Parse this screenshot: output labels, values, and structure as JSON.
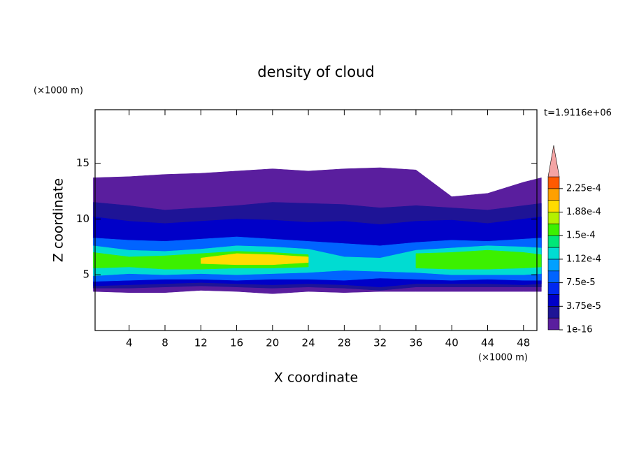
{
  "chart_data": {
    "type": "contour",
    "title": "density of cloud",
    "xlabel": "X coordinate",
    "ylabel": "Z coordinate",
    "xunit": "(×1000 m)",
    "yunit": "(×1000 m)",
    "annotation": "t=1.9116e+06",
    "xlim": [
      0.2,
      49.5
    ],
    "xticks": [
      4,
      8,
      12,
      16,
      20,
      24,
      28,
      32,
      36,
      40,
      44,
      48
    ],
    "ylim": [
      0,
      19.8
    ],
    "yticks": [
      5,
      10,
      15
    ],
    "colorbar": {
      "clim": [
        1e-16,
        0.00024375
      ],
      "bounds": [
        1e-16,
        1.875e-05,
        3.75e-05,
        5.625e-05,
        7.5e-05,
        9.375e-05,
        0.0001125,
        0.00013125,
        0.00015,
        0.00016875,
        0.0001875,
        0.00020625,
        0.000225
      ],
      "colors": [
        "#5a1e9e",
        "#1e1496",
        "#0000c8",
        "#0028f0",
        "#0064ff",
        "#00a0ff",
        "#00dcd2",
        "#00e678",
        "#3cf000",
        "#b4f000",
        "#ffdc00",
        "#ffa000",
        "#ff5a00"
      ],
      "extend_color": "#f4a4a4",
      "ticks": [
        {
          "value": 1e-16,
          "label": "1e-16"
        },
        {
          "value": 3.75e-05,
          "label": "3.75e-5"
        },
        {
          "value": 7.5e-05,
          "label": "7.5e-5"
        },
        {
          "value": 0.0001125,
          "label": "1.12e-4"
        },
        {
          "value": 0.00015,
          "label": "1.5e-4"
        },
        {
          "value": 0.0001875,
          "label": "1.88e-4"
        },
        {
          "value": 0.000225,
          "label": "2.25e-4"
        }
      ]
    },
    "x": [
      0,
      4,
      8,
      12,
      16,
      20,
      24,
      28,
      32,
      36,
      40,
      44,
      48,
      50
    ],
    "contours": [
      {
        "level": 1e-16,
        "top": [
          13.7,
          13.8,
          14.0,
          14.1,
          14.3,
          14.5,
          14.3,
          14.5,
          14.6,
          14.4,
          12.0,
          12.3,
          13.3,
          13.7
        ],
        "bottom": [
          3.5,
          3.4,
          3.4,
          3.6,
          3.5,
          3.3,
          3.5,
          3.4,
          3.5,
          3.5,
          3.5,
          3.5,
          3.5,
          3.5
        ]
      },
      {
        "level": 1.875e-05,
        "top": [
          11.5,
          11.2,
          10.8,
          11.0,
          11.2,
          11.5,
          11.4,
          11.3,
          11.0,
          11.2,
          11.0,
          10.8,
          11.2,
          11.4
        ],
        "bottom": [
          3.8,
          3.8,
          3.9,
          4.0,
          3.9,
          3.8,
          3.9,
          3.8,
          3.6,
          3.9,
          3.9,
          3.9,
          3.9,
          3.9
        ]
      },
      {
        "level": 3.75e-05,
        "top": [
          10.2,
          9.8,
          9.6,
          9.8,
          10.0,
          9.9,
          9.7,
          9.8,
          9.5,
          9.8,
          9.9,
          9.6,
          10.0,
          10.2
        ],
        "bottom": [
          4.0,
          4.1,
          4.2,
          4.3,
          4.2,
          4.1,
          4.2,
          4.1,
          3.9,
          4.2,
          4.2,
          4.2,
          4.1,
          4.2
        ]
      },
      {
        "level": 7.5e-05,
        "top": [
          8.3,
          8.1,
          8.0,
          8.2,
          8.4,
          8.2,
          8.0,
          7.8,
          7.6,
          7.9,
          8.1,
          8.0,
          8.2,
          8.3
        ],
        "bottom": [
          4.4,
          4.5,
          4.6,
          4.6,
          4.5,
          4.6,
          4.6,
          4.5,
          4.7,
          4.6,
          4.5,
          4.6,
          4.5,
          4.5
        ]
      },
      {
        "level": 0.0001125,
        "top": [
          7.6,
          7.2,
          7.1,
          7.3,
          7.6,
          7.5,
          7.3,
          6.6,
          6.5,
          7.2,
          7.4,
          7.6,
          7.5,
          7.4
        ],
        "bottom": [
          4.9,
          5.1,
          5.0,
          5.1,
          5.0,
          5.1,
          5.2,
          5.4,
          5.3,
          5.2,
          5.0,
          5.0,
          5.0,
          5.1
        ]
      },
      {
        "level": 0.00015,
        "top": [
          7.0,
          6.6,
          6.7,
          6.9,
          7.1,
          7.0,
          6.8,
          null,
          null,
          6.9,
          7.0,
          7.2,
          7.0,
          6.8
        ],
        "bottom": [
          5.6,
          5.7,
          5.5,
          5.5,
          5.6,
          5.6,
          5.7,
          null,
          null,
          5.6,
          5.5,
          5.5,
          5.6,
          5.7
        ]
      },
      {
        "level": 0.0001875,
        "top": [
          null,
          null,
          null,
          6.5,
          6.9,
          6.8,
          6.6,
          null,
          null,
          null,
          null,
          null,
          null,
          null
        ],
        "bottom": [
          null,
          null,
          null,
          6.0,
          5.9,
          5.9,
          6.1,
          null,
          null,
          null,
          null,
          null,
          null,
          null
        ]
      }
    ]
  }
}
